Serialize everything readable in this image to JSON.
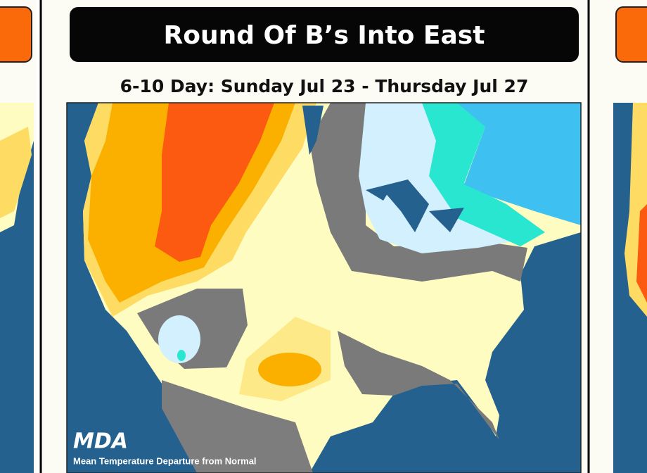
{
  "header": {
    "title": "Round Of B’s Into East",
    "subtitle": "6-10 Day: Sunday Jul 23 - Thursday Jul 27"
  },
  "map": {
    "logo": "MDA",
    "caption": "Mean Temperature Departure from Normal"
  }
}
